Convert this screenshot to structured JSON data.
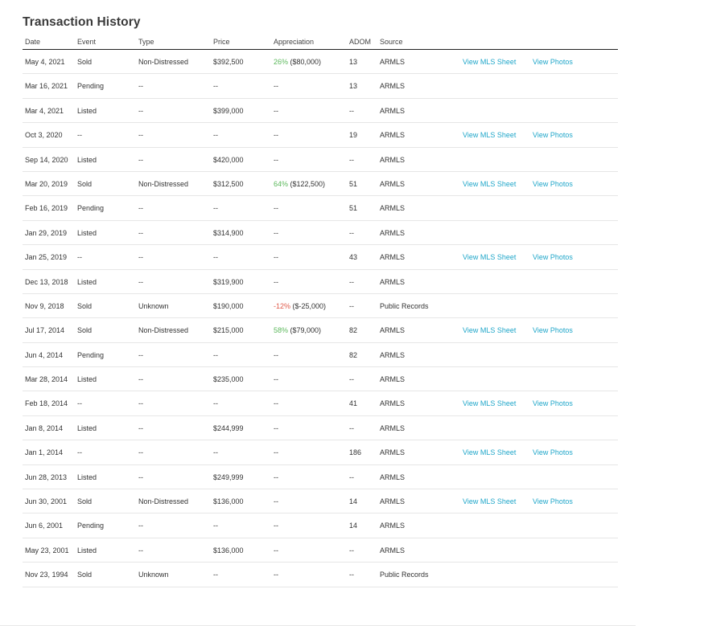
{
  "title": "Transaction History",
  "columns": {
    "date": "Date",
    "event": "Event",
    "type": "Type",
    "price": "Price",
    "appreciation": "Appreciation",
    "adom": "ADOM",
    "source": "Source"
  },
  "colors": {
    "positive": "#5cb85c",
    "negative": "#e05a4a",
    "link": "#1fa6c9"
  },
  "rows": [
    {
      "date": "May 4, 2021",
      "event": "Sold",
      "type": "Non-Distressed",
      "price": "$392,500",
      "appr_pct": "26%",
      "appr_amt": " ($80,000)",
      "appr_sign": "pos",
      "adom": "13",
      "source": "ARMLS",
      "mls": "View MLS Sheet",
      "photos": "View Photos"
    },
    {
      "date": "Mar 16, 2021",
      "event": "Pending",
      "type": "--",
      "price": "--",
      "appr_pct": "",
      "appr_amt": "--",
      "appr_sign": "",
      "adom": "13",
      "source": "ARMLS",
      "mls": "",
      "photos": ""
    },
    {
      "date": "Mar 4, 2021",
      "event": "Listed",
      "type": "--",
      "price": "$399,000",
      "appr_pct": "",
      "appr_amt": "--",
      "appr_sign": "",
      "adom": "--",
      "source": "ARMLS",
      "mls": "",
      "photos": ""
    },
    {
      "date": "Oct 3, 2020",
      "event": "--",
      "type": "--",
      "price": "--",
      "appr_pct": "",
      "appr_amt": "--",
      "appr_sign": "",
      "adom": "19",
      "source": "ARMLS",
      "mls": "View MLS Sheet",
      "photos": "View Photos"
    },
    {
      "date": "Sep 14, 2020",
      "event": "Listed",
      "type": "--",
      "price": "$420,000",
      "appr_pct": "",
      "appr_amt": "--",
      "appr_sign": "",
      "adom": "--",
      "source": "ARMLS",
      "mls": "",
      "photos": ""
    },
    {
      "date": "Mar 20, 2019",
      "event": "Sold",
      "type": "Non-Distressed",
      "price": "$312,500",
      "appr_pct": "64%",
      "appr_amt": " ($122,500)",
      "appr_sign": "pos",
      "adom": "51",
      "source": "ARMLS",
      "mls": "View MLS Sheet",
      "photos": "View Photos"
    },
    {
      "date": "Feb 16, 2019",
      "event": "Pending",
      "type": "--",
      "price": "--",
      "appr_pct": "",
      "appr_amt": "--",
      "appr_sign": "",
      "adom": "51",
      "source": "ARMLS",
      "mls": "",
      "photos": ""
    },
    {
      "date": "Jan 29, 2019",
      "event": "Listed",
      "type": "--",
      "price": "$314,900",
      "appr_pct": "",
      "appr_amt": "--",
      "appr_sign": "",
      "adom": "--",
      "source": "ARMLS",
      "mls": "",
      "photos": ""
    },
    {
      "date": "Jan 25, 2019",
      "event": "--",
      "type": "--",
      "price": "--",
      "appr_pct": "",
      "appr_amt": "--",
      "appr_sign": "",
      "adom": "43",
      "source": "ARMLS",
      "mls": "View MLS Sheet",
      "photos": "View Photos"
    },
    {
      "date": "Dec 13, 2018",
      "event": "Listed",
      "type": "--",
      "price": "$319,900",
      "appr_pct": "",
      "appr_amt": "--",
      "appr_sign": "",
      "adom": "--",
      "source": "ARMLS",
      "mls": "",
      "photos": ""
    },
    {
      "date": "Nov 9, 2018",
      "event": "Sold",
      "type": "Unknown",
      "price": "$190,000",
      "appr_pct": "-12%",
      "appr_amt": " ($-25,000)",
      "appr_sign": "neg",
      "adom": "--",
      "source": "Public Records",
      "mls": "",
      "photos": ""
    },
    {
      "date": "Jul 17, 2014",
      "event": "Sold",
      "type": "Non-Distressed",
      "price": "$215,000",
      "appr_pct": "58%",
      "appr_amt": " ($79,000)",
      "appr_sign": "pos",
      "adom": "82",
      "source": "ARMLS",
      "mls": "View MLS Sheet",
      "photos": "View Photos"
    },
    {
      "date": "Jun 4, 2014",
      "event": "Pending",
      "type": "--",
      "price": "--",
      "appr_pct": "",
      "appr_amt": "--",
      "appr_sign": "",
      "adom": "82",
      "source": "ARMLS",
      "mls": "",
      "photos": ""
    },
    {
      "date": "Mar 28, 2014",
      "event": "Listed",
      "type": "--",
      "price": "$235,000",
      "appr_pct": "",
      "appr_amt": "--",
      "appr_sign": "",
      "adom": "--",
      "source": "ARMLS",
      "mls": "",
      "photos": ""
    },
    {
      "date": "Feb 18, 2014",
      "event": "--",
      "type": "--",
      "price": "--",
      "appr_pct": "",
      "appr_amt": "--",
      "appr_sign": "",
      "adom": "41",
      "source": "ARMLS",
      "mls": "View MLS Sheet",
      "photos": "View Photos"
    },
    {
      "date": "Jan 8, 2014",
      "event": "Listed",
      "type": "--",
      "price": "$244,999",
      "appr_pct": "",
      "appr_amt": "--",
      "appr_sign": "",
      "adom": "--",
      "source": "ARMLS",
      "mls": "",
      "photos": ""
    },
    {
      "date": "Jan 1, 2014",
      "event": "--",
      "type": "--",
      "price": "--",
      "appr_pct": "",
      "appr_amt": "--",
      "appr_sign": "",
      "adom": "186",
      "source": "ARMLS",
      "mls": "View MLS Sheet",
      "photos": "View Photos"
    },
    {
      "date": "Jun 28, 2013",
      "event": "Listed",
      "type": "--",
      "price": "$249,999",
      "appr_pct": "",
      "appr_amt": "--",
      "appr_sign": "",
      "adom": "--",
      "source": "ARMLS",
      "mls": "",
      "photos": ""
    },
    {
      "date": "Jun 30, 2001",
      "event": "Sold",
      "type": "Non-Distressed",
      "price": "$136,000",
      "appr_pct": "",
      "appr_amt": "--",
      "appr_sign": "",
      "adom": "14",
      "source": "ARMLS",
      "mls": "View MLS Sheet",
      "photos": "View Photos"
    },
    {
      "date": "Jun 6, 2001",
      "event": "Pending",
      "type": "--",
      "price": "--",
      "appr_pct": "",
      "appr_amt": "--",
      "appr_sign": "",
      "adom": "14",
      "source": "ARMLS",
      "mls": "",
      "photos": ""
    },
    {
      "date": "May 23, 2001",
      "event": "Listed",
      "type": "--",
      "price": "$136,000",
      "appr_pct": "",
      "appr_amt": "--",
      "appr_sign": "",
      "adom": "--",
      "source": "ARMLS",
      "mls": "",
      "photos": ""
    },
    {
      "date": "Nov 23, 1994",
      "event": "Sold",
      "type": "Unknown",
      "price": "--",
      "appr_pct": "",
      "appr_amt": "--",
      "appr_sign": "",
      "adom": "--",
      "source": "Public Records",
      "mls": "",
      "photos": ""
    }
  ]
}
